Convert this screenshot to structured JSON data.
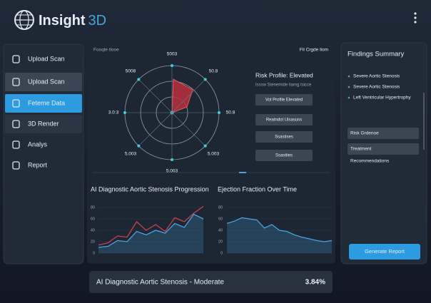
{
  "header": {
    "title": "Insight",
    "title_accent": "3D"
  },
  "sidebar": {
    "items": [
      "Upload Scan",
      "Upload Scan",
      "Feteme Data",
      "3D Render",
      "Analys",
      "Report"
    ]
  },
  "radar": {
    "caption_left": "Fooqle tlooe",
    "caption_right": "Fil Crgde liom",
    "labels": [
      "5003",
      "50.8",
      "50.8",
      "5.003",
      "5.003",
      "5.003",
      "3.0:3",
      "5008"
    ]
  },
  "risk": {
    "title": "Risk Profile: Elevated",
    "subtitle": "Isssw Stenemide liamg tsicce",
    "buttons": [
      "Vot Profile Elevated",
      "Reatndot Uisasuss",
      "Ssastises",
      "Ssastiies"
    ]
  },
  "charts": [
    {
      "type": "line",
      "title": "AI Diagnostic Aortic Stenosis Progression",
      "ylim": [
        0,
        90
      ],
      "yticks": [
        0,
        20,
        40,
        60,
        80
      ],
      "series": [
        {
          "color": "#4aa3df",
          "values": [
            10,
            12,
            22,
            20,
            38,
            32,
            40,
            35,
            52,
            45,
            68,
            60
          ]
        },
        {
          "color": "#d0404a",
          "values": [
            14,
            18,
            30,
            28,
            55,
            40,
            50,
            38,
            62,
            55,
            70,
            82
          ]
        }
      ]
    },
    {
      "type": "line",
      "title": "Ejection Fraction Over Time",
      "ylim": [
        0,
        90
      ],
      "yticks": [
        0,
        20,
        40,
        60,
        80
      ],
      "series": [
        {
          "color": "#4aa3df",
          "values": [
            52,
            56,
            62,
            60,
            58,
            44,
            50,
            40,
            38,
            32,
            28,
            25,
            22,
            20,
            22
          ]
        }
      ]
    }
  ],
  "findings": {
    "title": "Findings Summary",
    "bullets": [
      "Severe Aortic Stenosis",
      "Severe Aortic Stenosis",
      "Left Ventricular Hypertrophy"
    ],
    "sections": [
      "Risk Grdenoe",
      "Treatment",
      "Recommendations"
    ],
    "button": "Generate Report"
  },
  "footer": {
    "text": "AI Diagnostic Aortic Stenosis - Moderate",
    "value": "3.84%"
  }
}
